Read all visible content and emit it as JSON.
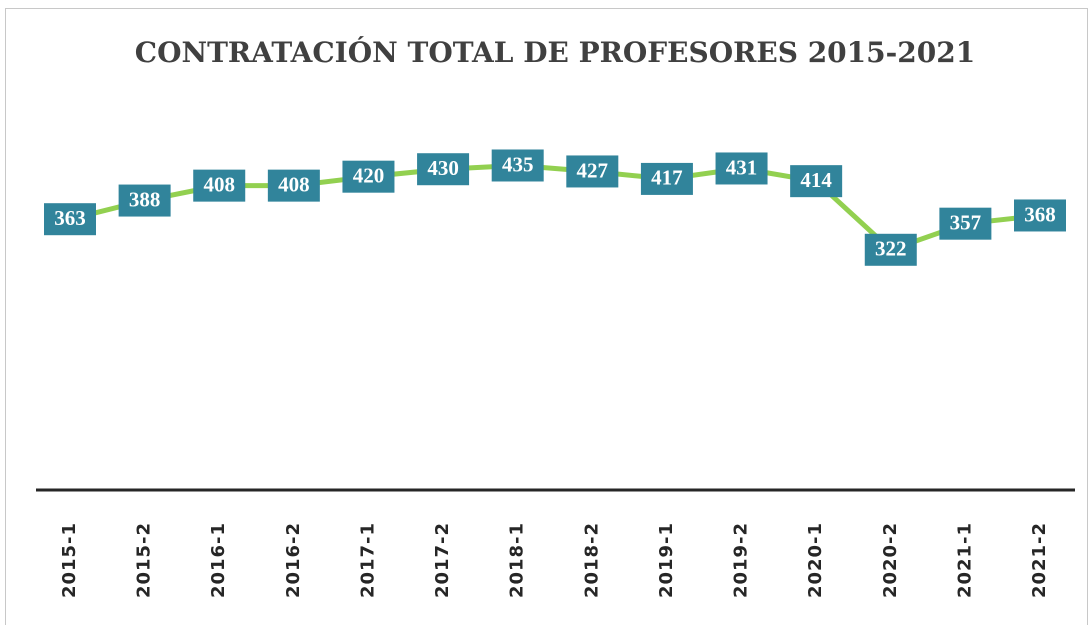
{
  "chart_data": {
    "type": "line",
    "title": "CONTRATACIÓN TOTAL DE PROFESORES 2015-2021",
    "categories": [
      "2015-1",
      "2015-2",
      "2016-1",
      "2016-2",
      "2017-1",
      "2017-2",
      "2018-1",
      "2018-2",
      "2019-1",
      "2019-2",
      "2020-1",
      "2020-2",
      "2021-1",
      "2021-2"
    ],
    "values": [
      363,
      388,
      408,
      408,
      420,
      430,
      435,
      427,
      417,
      431,
      414,
      322,
      357,
      368
    ],
    "color": "#92d050",
    "marker_color": "#ffc000",
    "label_color": "#31849b",
    "ylim": [
      0,
      500
    ]
  }
}
